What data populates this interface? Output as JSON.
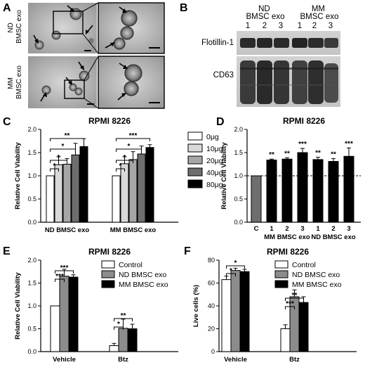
{
  "panels": {
    "A": {
      "label": "A",
      "rows": [
        "ND BMSC exo",
        "MM BMSC exo"
      ],
      "row_lines": [
        [
          "ND",
          "BMSC exo"
        ],
        [
          "MM",
          "BMSC exo"
        ]
      ]
    },
    "B": {
      "label": "B",
      "groups": [
        [
          "ND",
          "BMSC exo"
        ],
        [
          "MM",
          "BMSC exo"
        ]
      ],
      "lanes": [
        "1",
        "2",
        "3",
        "1",
        "2",
        "3"
      ],
      "bands": [
        "Flotillin-1",
        "CD63"
      ]
    }
  },
  "chart_data": [
    {
      "panel": "C",
      "type": "bar",
      "title": "RPMI 8226",
      "ylabel": "Relative Cell Viability",
      "ylim": [
        0,
        2.0
      ],
      "yticks": [
        "0.0",
        "0.5",
        "1.0",
        "1.5",
        "2.0"
      ],
      "categories": [
        "ND BMSC exo",
        "MM BMSC exo"
      ],
      "series": [
        {
          "name": "0μg",
          "values": [
            1.0,
            1.0
          ],
          "err": [
            0,
            0
          ],
          "color": "#ffffff"
        },
        {
          "name": "10μg",
          "values": [
            1.24,
            1.26
          ],
          "err": [
            0.17,
            0.15
          ],
          "color": "#d9d9d9"
        },
        {
          "name": "20μg",
          "values": [
            1.25,
            1.35
          ],
          "err": [
            0.12,
            0.17
          ],
          "color": "#a6a6a6"
        },
        {
          "name": "40μg",
          "values": [
            1.45,
            1.47
          ],
          "err": [
            0.25,
            0.17
          ],
          "color": "#6e6e6e"
        },
        {
          "name": "80μg",
          "values": [
            1.63,
            1.61
          ],
          "err": [
            0.17,
            0.06
          ],
          "color": "#000000"
        }
      ],
      "brackets": [
        {
          "group": 0,
          "to": 1,
          "label": "*"
        },
        {
          "group": 0,
          "to": 2,
          "label": "*"
        },
        {
          "group": 0,
          "to": 3,
          "label": "*"
        },
        {
          "group": 0,
          "to": 4,
          "label": "**"
        },
        {
          "group": 1,
          "to": 1,
          "label": "*"
        },
        {
          "group": 1,
          "to": 2,
          "label": "*"
        },
        {
          "group": 1,
          "to": 3,
          "label": "*"
        },
        {
          "group": 1,
          "to": 4,
          "label": "***"
        }
      ]
    },
    {
      "panel": "D",
      "type": "bar",
      "title": "RPMI 8226",
      "ylabel": "Relative Cell Viability",
      "ylim": [
        0,
        2.0
      ],
      "yticks": [
        "0.0",
        "0.5",
        "1.0",
        "1.5",
        "2.0"
      ],
      "categories": [
        "C",
        "1",
        "2",
        "3",
        "1",
        "2",
        "3"
      ],
      "group_labels": [
        "MM BMSC exo",
        "ND BMSC exo"
      ],
      "values": [
        1.0,
        1.34,
        1.36,
        1.5,
        1.35,
        1.31,
        1.42
      ],
      "err": [
        0,
        0.02,
        0.03,
        0.09,
        0.05,
        0.06,
        0.18
      ],
      "stars": [
        "",
        "**",
        "**",
        "***",
        "**",
        "**",
        "***"
      ],
      "reference_line": 1.0
    },
    {
      "panel": "E",
      "type": "bar",
      "title": "RPMI 8226",
      "ylabel": "Relative Cell Viability",
      "ylim": [
        0,
        2.0
      ],
      "yticks": [
        "0.0",
        "0.5",
        "1.0",
        "1.5",
        "2.0"
      ],
      "categories": [
        "Vehicle",
        "Btz"
      ],
      "series": [
        {
          "name": "Control",
          "values": [
            1.0,
            0.13
          ],
          "err": [
            0,
            0.05
          ],
          "color": "#ffffff"
        },
        {
          "name": "ND BMSC exo",
          "values": [
            1.65,
            0.51
          ],
          "err": [
            0.15,
            0.2
          ],
          "color": "#8c8c8c"
        },
        {
          "name": "MM BMSC exo",
          "values": [
            1.63,
            0.5
          ],
          "err": [
            0.05,
            0.1
          ],
          "color": "#000000"
        }
      ],
      "brackets": [
        {
          "group": 0,
          "to": 1,
          "label": "***"
        },
        {
          "group": 0,
          "to": 2,
          "label": "***"
        },
        {
          "group": 1,
          "to": 1,
          "label": "*"
        },
        {
          "group": 1,
          "to": 2,
          "label": "**"
        }
      ]
    },
    {
      "panel": "F",
      "type": "bar",
      "title": "RPMI 8226",
      "ylabel": "Live cells (%)",
      "ylim": [
        0,
        80
      ],
      "yticks": [
        "0",
        "20",
        "40",
        "60",
        "80"
      ],
      "categories": [
        "Vehicle",
        "Btz"
      ],
      "series": [
        {
          "name": "Control",
          "values": [
            63,
            20
          ],
          "err": [
            3,
            3.5
          ],
          "color": "#ffffff"
        },
        {
          "name": "ND BMSC exo",
          "values": [
            71,
            48
          ],
          "err": [
            2,
            6
          ],
          "color": "#8c8c8c"
        },
        {
          "name": "MM BMSC exo",
          "values": [
            70,
            43
          ],
          "err": [
            2,
            5
          ],
          "color": "#000000"
        }
      ],
      "brackets": [
        {
          "group": 0,
          "to": 1,
          "label": "*"
        },
        {
          "group": 0,
          "to": 2,
          "label": "*"
        },
        {
          "group": 1,
          "to": 1,
          "label": "***"
        },
        {
          "group": 1,
          "to": 2,
          "label": "**"
        }
      ]
    }
  ]
}
